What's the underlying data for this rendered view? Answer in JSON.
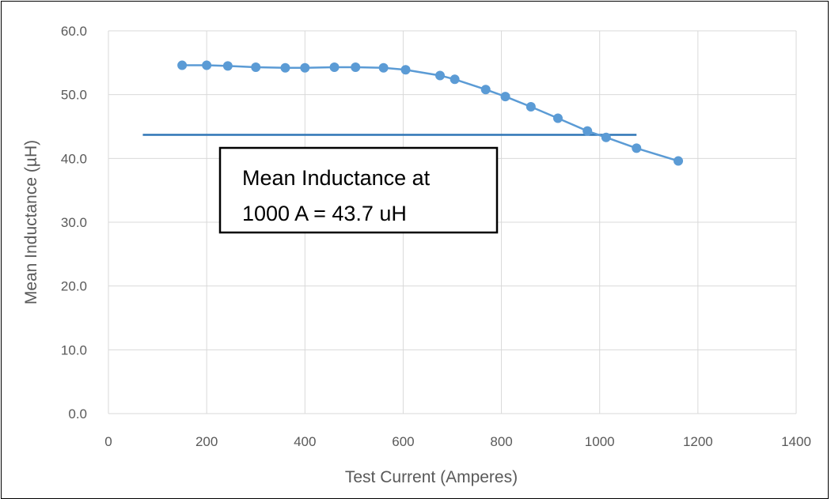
{
  "chart_data": {
    "type": "scatter",
    "xlabel": "Test Current (Amperes)",
    "ylabel": "Mean Inductance (µH)",
    "xlim": [
      0,
      1400
    ],
    "ylim": [
      0,
      60
    ],
    "x_ticks": [
      "0",
      "200",
      "400",
      "600",
      "800",
      "1000",
      "1200",
      "1400"
    ],
    "y_ticks": [
      "0.0",
      "10.0",
      "20.0",
      "30.0",
      "40.0",
      "50.0",
      "60.0"
    ],
    "grid": true,
    "series": [
      {
        "points": [
          [
            150,
            54.6
          ],
          [
            200,
            54.6
          ],
          [
            243,
            54.5
          ],
          [
            300,
            54.3
          ],
          [
            360,
            54.2
          ],
          [
            400,
            54.2
          ],
          [
            460,
            54.3
          ],
          [
            503,
            54.3
          ],
          [
            560,
            54.2
          ],
          [
            605,
            53.9
          ],
          [
            675,
            53.0
          ],
          [
            705,
            52.4
          ],
          [
            768,
            50.8
          ],
          [
            808,
            49.7
          ],
          [
            860,
            48.1
          ],
          [
            915,
            46.3
          ],
          [
            975,
            44.3
          ],
          [
            1013,
            43.3
          ],
          [
            1075,
            41.6
          ],
          [
            1160,
            39.6
          ]
        ],
        "color": "#5b9bd5"
      }
    ],
    "reference_line": {
      "y": 43.7,
      "x_start": 70,
      "x_end": 1075,
      "color": "#2e75b6"
    },
    "annotation": {
      "lines": [
        "Mean Inductance at",
        "1000 A = 43.7 uH"
      ]
    }
  }
}
